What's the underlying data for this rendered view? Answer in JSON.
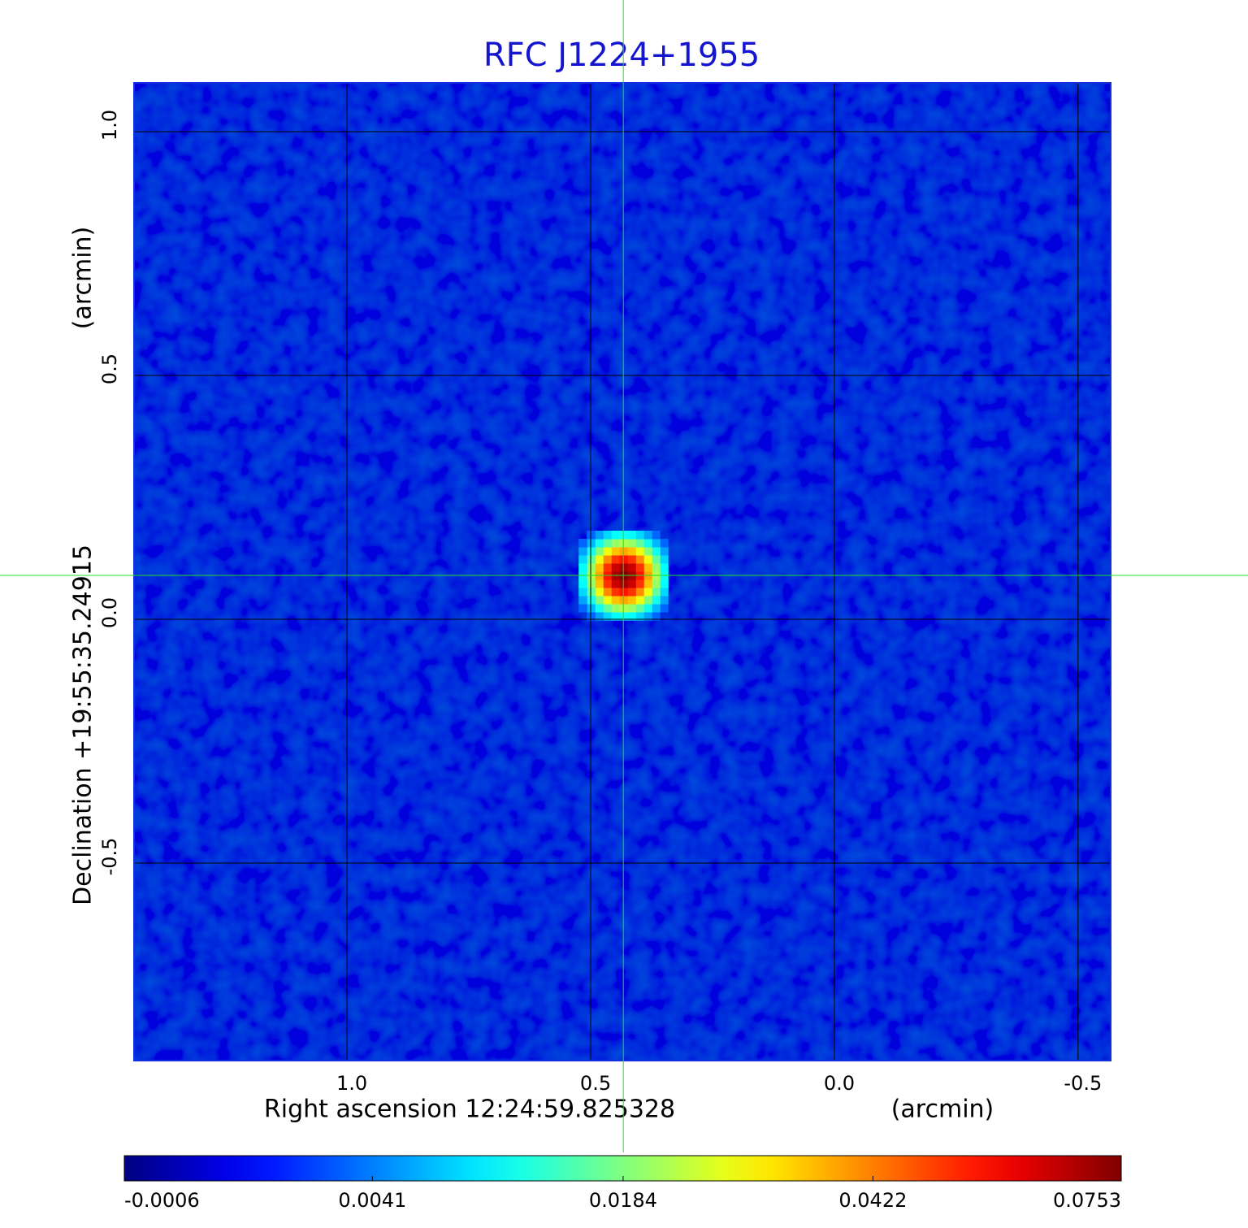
{
  "chart_data": {
    "type": "image",
    "title": "RFC J1224+1955",
    "xlabel": "Right ascension  12:24:59.825328",
    "xunit": "(arcmin)",
    "ylabel": "Declination  +19:55:35.24915",
    "yunit": "(arcmin)",
    "xlim": [
      1.437,
      -0.567
    ],
    "ylim": [
      -0.905,
      1.1
    ],
    "xticks": [
      {
        "value": 1,
        "label": "1.0"
      },
      0.5,
      {
        "value": 0,
        "label": "0.0"
      },
      -0.5
    ],
    "yticks": [
      {
        "value": 1,
        "label": "1.0"
      },
      0.5,
      {
        "value": 0,
        "label": "0.0"
      },
      -0.5
    ],
    "grid": true,
    "colormap": "jet",
    "colorbar_scale": "sqrt",
    "colorbar_lim": [
      -0.0006,
      0.0753
    ],
    "colorbar_ticks": [
      -0.0006,
      0.0041,
      0.0184,
      0.0422,
      0.0753
    ],
    "source": {
      "x": 0.433,
      "y": 0.09,
      "peak": 0.0753,
      "fwhm": 0.1
    },
    "crosshair": {
      "x": 0.433,
      "y": 0.09
    }
  }
}
